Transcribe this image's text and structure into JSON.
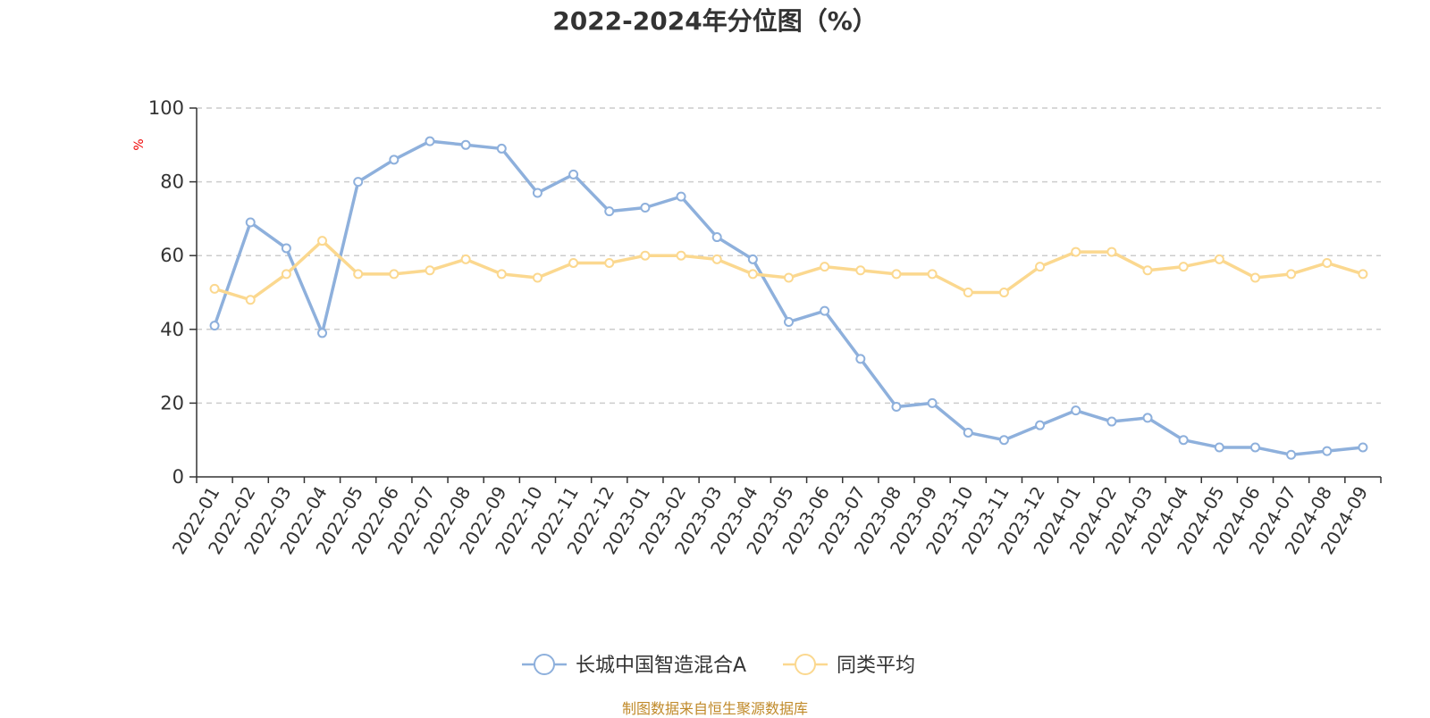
{
  "chart_data": {
    "type": "line",
    "title": "2022-2024年分位图（%）",
    "ylabel": "%",
    "xlabel": "",
    "ylim": [
      0,
      100
    ],
    "yticks": [
      0,
      20,
      40,
      60,
      80,
      100
    ],
    "grid": true,
    "legend_position": "bottom-center",
    "categories": [
      "2022-01",
      "2022-02",
      "2022-03",
      "2022-04",
      "2022-05",
      "2022-06",
      "2022-07",
      "2022-08",
      "2022-09",
      "2022-10",
      "2022-11",
      "2022-12",
      "2023-01",
      "2023-02",
      "2023-03",
      "2023-04",
      "2023-05",
      "2023-06",
      "2023-07",
      "2023-08",
      "2023-09",
      "2023-10",
      "2023-11",
      "2023-12",
      "2024-01",
      "2024-02",
      "2024-03",
      "2024-04",
      "2024-05",
      "2024-06",
      "2024-07",
      "2024-08",
      "2024-09"
    ],
    "series": [
      {
        "name": "长城中国智造混合A",
        "color": "#8eb0dc",
        "values": [
          41,
          69,
          62,
          39,
          80,
          86,
          91,
          90,
          89,
          77,
          82,
          72,
          73,
          76,
          65,
          59,
          42,
          45,
          32,
          19,
          20,
          12,
          10,
          14,
          18,
          15,
          16,
          10,
          8,
          8,
          6,
          7,
          8
        ]
      },
      {
        "name": "同类平均",
        "color": "#fbd88f",
        "values": [
          51,
          48,
          55,
          64,
          55,
          55,
          56,
          59,
          55,
          54,
          58,
          58,
          60,
          60,
          59,
          55,
          54,
          57,
          56,
          55,
          55,
          50,
          50,
          57,
          61,
          61,
          56,
          57,
          59,
          54,
          55,
          58,
          55
        ]
      }
    ]
  },
  "source_text": "制图数据来自恒生聚源数据库"
}
